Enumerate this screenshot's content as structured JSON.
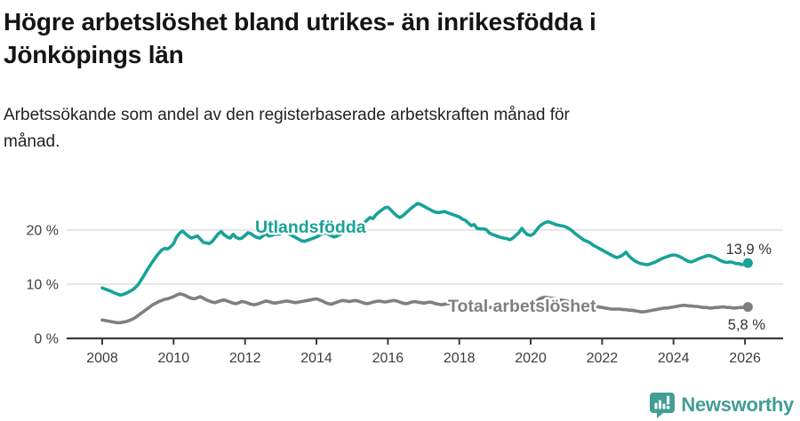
{
  "header": {
    "title_line1": "Högre arbetslöshet bland utrikes- än inrikesfödda i",
    "title_line2": "Jönköpings län",
    "subtitle_line1": "Arbetssökande som andel av den registerbaserade arbetskraften månad för",
    "subtitle_line2": "månad."
  },
  "chart_data": {
    "type": "line",
    "x_unit": "month",
    "x_start_year": 2008,
    "x_tick_years": [
      2008,
      2010,
      2012,
      2014,
      2016,
      2018,
      2020,
      2022,
      2024,
      2026
    ],
    "ylim": [
      0,
      26
    ],
    "grid": "horizontal",
    "y_ticks": [
      {
        "value": 0,
        "label": "0 %"
      },
      {
        "value": 10,
        "label": "10 %"
      },
      {
        "value": 20,
        "label": "20 %"
      }
    ],
    "series": [
      {
        "name": "Utlandsfödda",
        "color": "#17a298",
        "end_label": "13,9 %",
        "end_value": 13.9,
        "values": [
          9.3,
          9.1,
          8.9,
          8.7,
          8.4,
          8.2,
          8.0,
          8.1,
          8.3,
          8.6,
          8.9,
          9.3,
          9.9,
          10.7,
          11.6,
          12.5,
          13.4,
          14.2,
          15.0,
          15.7,
          16.3,
          16.6,
          16.5,
          16.9,
          17.5,
          18.7,
          19.4,
          19.8,
          19.3,
          18.8,
          18.5,
          18.7,
          18.9,
          18.3,
          17.7,
          17.6,
          17.5,
          17.9,
          18.6,
          19.3,
          19.7,
          19.1,
          18.7,
          18.5,
          19.2,
          18.6,
          18.4,
          18.5,
          19.0,
          19.5,
          19.3,
          18.9,
          18.6,
          18.5,
          18.9,
          19.3,
          18.9,
          19.0,
          19.2,
          19.2,
          19.3,
          19.6,
          19.5,
          19.2,
          18.9,
          18.6,
          18.3,
          18.0,
          17.9,
          18.1,
          18.3,
          18.5,
          18.7,
          19.0,
          19.3,
          19.5,
          19.2,
          18.9,
          18.7,
          18.9,
          19.2,
          19.5,
          19.8,
          20.1,
          20.3,
          20.7,
          21.1,
          20.8,
          21.3,
          21.8,
          22.3,
          22.1,
          22.8,
          23.3,
          23.7,
          24.1,
          24.2,
          23.7,
          23.1,
          22.6,
          22.3,
          22.6,
          23.1,
          23.6,
          24.1,
          24.5,
          24.9,
          24.7,
          24.4,
          24.1,
          23.8,
          23.5,
          23.3,
          23.2,
          23.3,
          23.4,
          23.2,
          23.0,
          22.8,
          22.6,
          22.4,
          22.0,
          21.8,
          21.3,
          20.8,
          21.0,
          20.3,
          20.2,
          20.2,
          20.1,
          19.5,
          19.2,
          19.0,
          18.8,
          18.6,
          18.5,
          18.4,
          18.2,
          18.5,
          19.0,
          19.5,
          20.3,
          19.6,
          19.1,
          19.0,
          19.3,
          20.0,
          20.7,
          21.1,
          21.4,
          21.5,
          21.3,
          21.1,
          20.9,
          20.8,
          20.7,
          20.5,
          20.2,
          19.8,
          19.3,
          18.9,
          18.5,
          18.1,
          17.9,
          17.6,
          17.2,
          16.9,
          16.6,
          16.3,
          16.0,
          15.7,
          15.4,
          15.1,
          14.9,
          15.1,
          15.4,
          15.9,
          15.2,
          14.7,
          14.3,
          14.0,
          13.8,
          13.7,
          13.6,
          13.7,
          13.9,
          14.1,
          14.4,
          14.7,
          14.9,
          15.1,
          15.3,
          15.4,
          15.3,
          15.1,
          14.8,
          14.5,
          14.2,
          14.1,
          14.3,
          14.6,
          14.8,
          15.0,
          15.2,
          15.3,
          15.1,
          14.9,
          14.6,
          14.3,
          14.1,
          14.0,
          14.1,
          14.0,
          13.8,
          13.8,
          13.6,
          13.7,
          13.9
        ]
      },
      {
        "name": "Total arbetslöshet",
        "color": "#7f7f7f",
        "end_label": "5,8 %",
        "end_value": 5.8,
        "values": [
          3.4,
          3.3,
          3.2,
          3.1,
          3.0,
          2.9,
          2.9,
          3.0,
          3.1,
          3.3,
          3.5,
          3.8,
          4.2,
          4.6,
          5.0,
          5.4,
          5.8,
          6.2,
          6.5,
          6.8,
          7.0,
          7.2,
          7.3,
          7.5,
          7.7,
          8.0,
          8.2,
          8.1,
          7.9,
          7.6,
          7.4,
          7.3,
          7.5,
          7.7,
          7.4,
          7.1,
          6.9,
          6.7,
          6.6,
          6.8,
          7.0,
          7.1,
          6.9,
          6.7,
          6.5,
          6.4,
          6.6,
          6.8,
          6.7,
          6.5,
          6.3,
          6.2,
          6.3,
          6.5,
          6.7,
          6.9,
          6.8,
          6.6,
          6.5,
          6.6,
          6.7,
          6.8,
          6.9,
          6.8,
          6.7,
          6.6,
          6.7,
          6.8,
          6.9,
          7.0,
          7.1,
          7.2,
          7.3,
          7.1,
          6.9,
          6.6,
          6.4,
          6.3,
          6.5,
          6.7,
          6.9,
          7.0,
          6.9,
          6.8,
          6.9,
          7.0,
          6.9,
          6.7,
          6.5,
          6.4,
          6.5,
          6.7,
          6.8,
          6.9,
          6.8,
          6.7,
          6.8,
          6.9,
          7.0,
          6.9,
          6.7,
          6.5,
          6.4,
          6.5,
          6.7,
          6.8,
          6.7,
          6.6,
          6.5,
          6.6,
          6.7,
          6.6,
          6.4,
          6.3,
          6.2,
          6.3,
          6.4,
          6.4,
          6.3,
          6.2,
          6.1,
          6.0,
          5.9,
          5.8,
          5.8,
          5.7,
          5.7,
          5.8,
          5.9,
          5.8,
          5.7,
          5.7,
          5.8,
          5.8,
          5.9,
          5.9,
          6.0,
          6.1,
          6.2,
          6.2,
          6.3,
          6.3,
          6.4,
          6.4,
          6.5,
          6.6,
          6.9,
          7.3,
          7.5,
          7.6,
          7.5,
          7.4,
          7.3,
          7.2,
          7.1,
          7.0,
          6.9,
          6.8,
          6.7,
          6.6,
          6.5,
          6.4,
          6.3,
          6.2,
          6.1,
          6.0,
          5.9,
          5.8,
          5.7,
          5.6,
          5.5,
          5.4,
          5.4,
          5.4,
          5.4,
          5.3,
          5.3,
          5.2,
          5.2,
          5.1,
          5.0,
          4.9,
          4.9,
          5.0,
          5.1,
          5.2,
          5.3,
          5.4,
          5.5,
          5.6,
          5.6,
          5.7,
          5.8,
          5.9,
          6.0,
          6.1,
          6.1,
          6.0,
          6.0,
          5.9,
          5.9,
          5.8,
          5.7,
          5.7,
          5.6,
          5.6,
          5.7,
          5.7,
          5.8,
          5.8,
          5.7,
          5.7,
          5.6,
          5.6,
          5.7,
          5.7,
          5.7,
          5.8
        ]
      }
    ]
  },
  "footer": {
    "brand": "Newsworthy",
    "logo_icon": "bar-chart-speech-bubble",
    "brand_color": "#429e97"
  }
}
